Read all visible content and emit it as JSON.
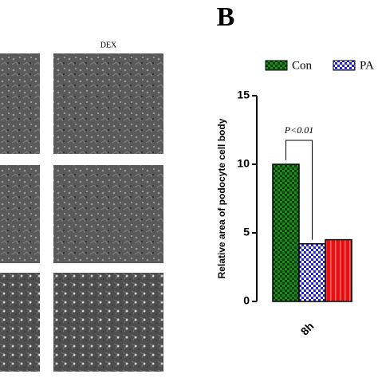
{
  "panel_label": "B",
  "image_label": "DEX",
  "chart_data": {
    "type": "bar",
    "y_label": "Relative area of podocyte cell body",
    "annotation": "P<0.01",
    "categories": [
      "8h"
    ],
    "series": [
      {
        "name": "Con",
        "color": "#1f8a1f",
        "pattern": "checker",
        "values": [
          10
        ]
      },
      {
        "name": "PA",
        "color": "#2020e0",
        "pattern": "checker",
        "values": [
          4.2
        ]
      },
      {
        "color": "#e81010",
        "pattern": "stripes",
        "values": [
          4.5
        ]
      }
    ],
    "ylim": [
      0,
      15
    ],
    "yticks": [
      0,
      5,
      10,
      15
    ]
  }
}
